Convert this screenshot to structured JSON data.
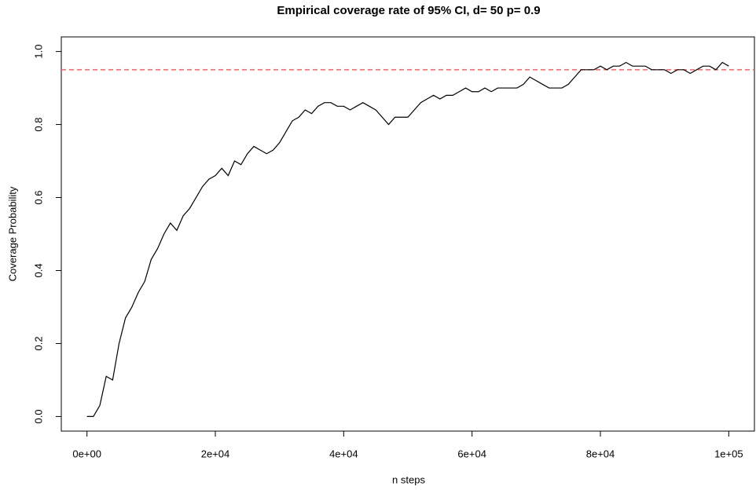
{
  "chart_data": {
    "type": "line",
    "title": "Empirical coverage rate of 95% CI, d= 50 p= 0.9",
    "xlabel": "n steps",
    "ylabel": "Coverage Probability",
    "x": [
      0,
      1000,
      2000,
      3000,
      4000,
      5000,
      6000,
      7000,
      8000,
      9000,
      10000,
      11000,
      12000,
      13000,
      14000,
      15000,
      16000,
      17000,
      18000,
      19000,
      20000,
      21000,
      22000,
      23000,
      24000,
      25000,
      26000,
      27000,
      28000,
      29000,
      30000,
      31000,
      32000,
      33000,
      34000,
      35000,
      36000,
      37000,
      38000,
      39000,
      40000,
      41000,
      42000,
      43000,
      44000,
      45000,
      46000,
      47000,
      48000,
      49000,
      50000,
      51000,
      52000,
      53000,
      54000,
      55000,
      56000,
      57000,
      58000,
      59000,
      60000,
      61000,
      62000,
      63000,
      64000,
      65000,
      66000,
      67000,
      68000,
      69000,
      70000,
      71000,
      72000,
      73000,
      74000,
      75000,
      76000,
      77000,
      78000,
      79000,
      80000,
      81000,
      82000,
      83000,
      84000,
      85000,
      86000,
      87000,
      88000,
      89000,
      90000,
      91000,
      92000,
      93000,
      94000,
      95000,
      96000,
      97000,
      98000,
      99000,
      100000
    ],
    "series": [
      {
        "name": "coverage",
        "color": "#000000",
        "values": [
          0,
          0,
          0.03,
          0.11,
          0.1,
          0.2,
          0.27,
          0.3,
          0.34,
          0.37,
          0.43,
          0.46,
          0.5,
          0.53,
          0.51,
          0.55,
          0.57,
          0.6,
          0.63,
          0.65,
          0.66,
          0.68,
          0.66,
          0.7,
          0.69,
          0.72,
          0.74,
          0.73,
          0.72,
          0.73,
          0.75,
          0.78,
          0.81,
          0.82,
          0.84,
          0.83,
          0.85,
          0.86,
          0.86,
          0.85,
          0.85,
          0.84,
          0.85,
          0.86,
          0.85,
          0.84,
          0.82,
          0.8,
          0.82,
          0.82,
          0.82,
          0.84,
          0.86,
          0.87,
          0.88,
          0.87,
          0.88,
          0.88,
          0.89,
          0.9,
          0.89,
          0.89,
          0.9,
          0.89,
          0.9,
          0.9,
          0.9,
          0.9,
          0.91,
          0.93,
          0.92,
          0.91,
          0.9,
          0.9,
          0.9,
          0.91,
          0.93,
          0.95,
          0.95,
          0.95,
          0.96,
          0.95,
          0.96,
          0.96,
          0.97,
          0.96,
          0.96,
          0.96,
          0.95,
          0.95,
          0.95,
          0.94,
          0.95,
          0.95,
          0.94,
          0.95,
          0.96,
          0.96,
          0.95,
          0.97,
          0.96
        ]
      }
    ],
    "reference_line": 0.95,
    "reference_color": "#ff5a5a",
    "xlim": [
      -4000,
      104000
    ],
    "xticks": [
      {
        "value": 0,
        "label": "0e+00"
      },
      {
        "value": 20000,
        "label": "2e+04"
      },
      {
        "value": 40000,
        "label": "4e+04"
      },
      {
        "value": 60000,
        "label": "6e+04"
      },
      {
        "value": 80000,
        "label": "8e+04"
      },
      {
        "value": 100000,
        "label": "1e+05"
      }
    ],
    "ylim": [
      -0.04,
      1.04
    ],
    "yticks": [
      {
        "value": 0,
        "label": "0.0"
      },
      0.2,
      0.4,
      0.6,
      0.8,
      {
        "value": 1,
        "label": "1.0"
      }
    ],
    "grid": false
  }
}
